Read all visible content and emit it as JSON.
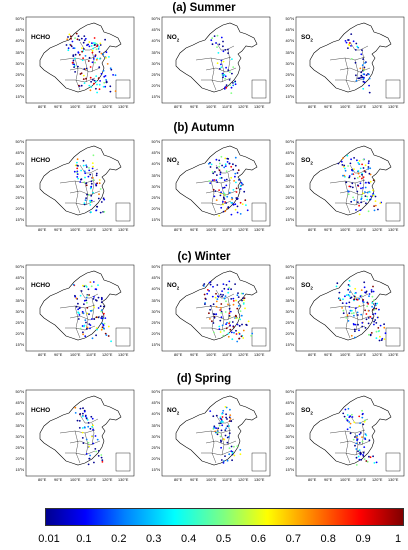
{
  "seasons": [
    {
      "title": "(a) Summer"
    },
    {
      "title": "(b) Autumn"
    },
    {
      "title": "(c) Winter"
    },
    {
      "title": "(d) Spring"
    }
  ],
  "species": {
    "hcho": "HCHO",
    "no2": {
      "base": "NO",
      "sub": "2"
    },
    "so2": {
      "base": "SO",
      "sub": "2"
    }
  },
  "lat_ticks": [
    "50°N",
    "45°N",
    "40°N",
    "35°N",
    "30°N",
    "25°N",
    "20°N",
    "15°N"
  ],
  "lon_ticks": [
    "80°E",
    "90°E",
    "100°E",
    "110°E",
    "120°E",
    "130°E"
  ],
  "colorbar": {
    "ticks": [
      "0.01",
      "0.1",
      "0.2",
      "0.3",
      "0.4",
      "0.5",
      "0.6",
      "0.7",
      "0.8",
      "0.9",
      "1"
    ],
    "colors": [
      "#00008f",
      "#0000ff",
      "#0080ff",
      "#00ffff",
      "#80ff80",
      "#ffff00",
      "#ff8000",
      "#ff0000",
      "#800000"
    ]
  }
}
